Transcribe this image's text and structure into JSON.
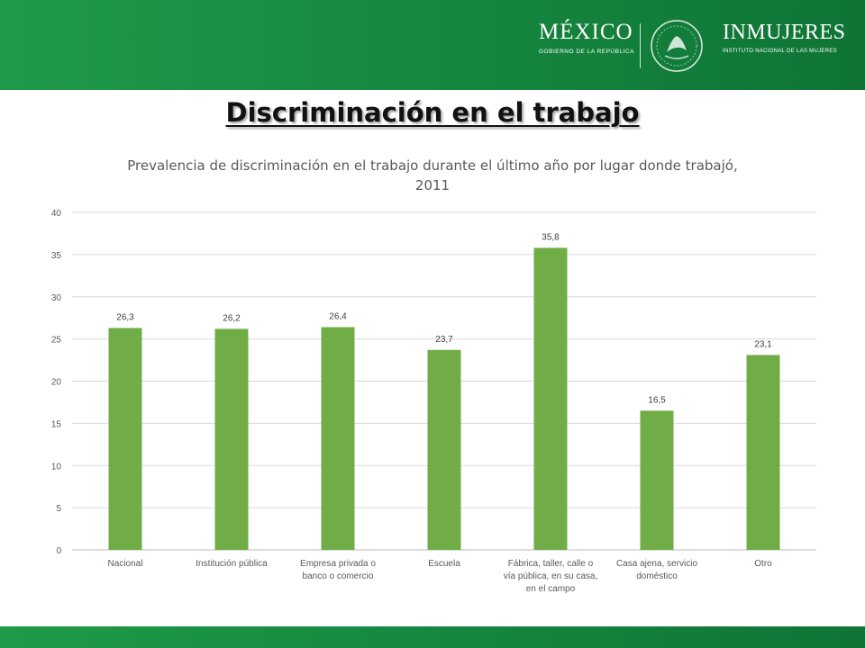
{
  "header": {
    "logo_mexico": "MÉXICO",
    "logo_mexico_sub": "GOBIERNO DE LA REPÚBLICA",
    "logo_inmujeres": "INMUJERES",
    "logo_inmujeres_sub": "INSTITUTO NACIONAL DE LAS MUJERES",
    "seal_icon": "national-seal-icon"
  },
  "slide": {
    "title": "Discriminación en el trabajo"
  },
  "colors": {
    "band_green": "#168a40",
    "bar_green": "#70ad47",
    "axis_text": "#595959",
    "grid": "#d9d9d9"
  },
  "chart_data": {
    "type": "bar",
    "title": "Prevalencia de discriminación en el trabajo durante el último año por lugar donde trabajó, 2011",
    "xlabel": "",
    "ylabel": "",
    "ylim": [
      0,
      40
    ],
    "yticks": [
      "0",
      "5",
      "10",
      "15",
      "20",
      "25",
      "30",
      "35",
      "40"
    ],
    "grid": true,
    "categories": [
      [
        "Nacional"
      ],
      [
        "Institución pública"
      ],
      [
        "Empresa privada o",
        "banco o comercio"
      ],
      [
        "Escuela"
      ],
      [
        "Fábrica, taller, calle o",
        "vía pública, en su casa,",
        "en el campo"
      ],
      [
        "Casa ajena, servicio",
        "doméstico"
      ],
      [
        "Otro"
      ]
    ],
    "values": [
      26.3,
      26.2,
      26.4,
      23.7,
      35.8,
      16.5,
      23.1
    ],
    "data_labels": [
      "26,3",
      "26,2",
      "26,4",
      "23,7",
      "35,8",
      "16,5",
      "23,1"
    ]
  }
}
